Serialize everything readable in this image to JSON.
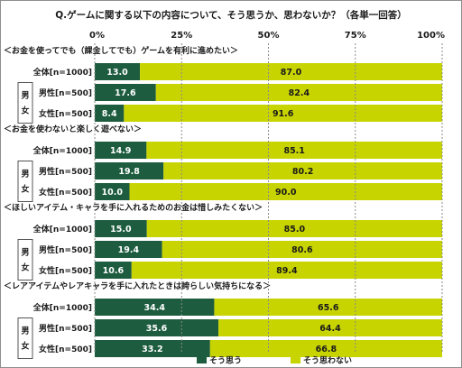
{
  "chart_data": {
    "type": "bar",
    "orientation": "horizontal",
    "stacked": true,
    "title": "Q.ゲームに関する以下の内容について、そう思うか、思わないか？（各単一回答）",
    "x_ticks": [
      "0%",
      "25%",
      "50%",
      "75%",
      "100%"
    ],
    "xlim": [
      0,
      100
    ],
    "grid": true,
    "legend_position": "bottom",
    "row_labels": [
      "全体[n=1000]",
      "男性[n=500]",
      "女性[n=500]"
    ],
    "gender_box_label": "男女",
    "series": [
      {
        "name": "そう思う",
        "color": "#1d5c3f",
        "text_color": "#ffffff"
      },
      {
        "name": "そう思わない",
        "color": "#c8d400",
        "text_color": "#1a1a1a"
      }
    ],
    "groups": [
      {
        "label": "＜お金を使ってでも（課金してでも）ゲームを有利に進めたい＞",
        "agree": [
          13.0,
          17.6,
          8.4
        ],
        "disagree": [
          87.0,
          82.4,
          91.6
        ]
      },
      {
        "label": "＜お金を使わないと楽しく遊べない＞",
        "agree": [
          14.9,
          19.8,
          10.0
        ],
        "disagree": [
          85.1,
          80.2,
          90.0
        ]
      },
      {
        "label": "＜ほしいアイテム・キャラを手に入れるためのお金は惜しみたくない＞",
        "agree": [
          15.0,
          19.4,
          10.6
        ],
        "disagree": [
          85.0,
          80.6,
          89.4
        ]
      },
      {
        "label": "＜レアアイテムやレアキャラを手に入れたときは誇らしい気持ちになる＞",
        "agree": [
          34.4,
          35.6,
          33.2
        ],
        "disagree": [
          65.6,
          64.4,
          66.8
        ]
      }
    ]
  }
}
